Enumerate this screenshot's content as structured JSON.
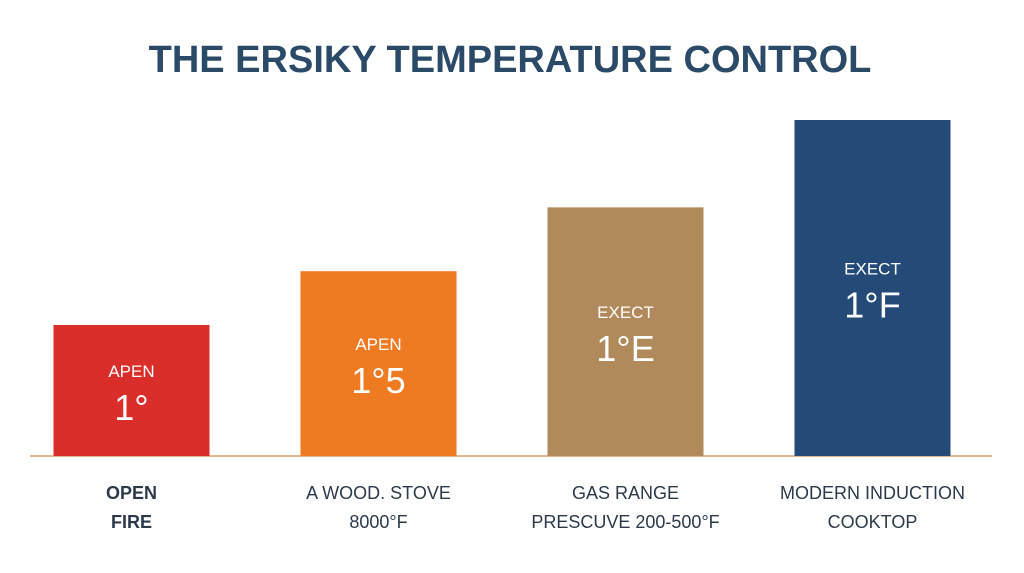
{
  "chart_data": {
    "type": "bar",
    "title": "THE ERSIKY TEMPERATURE CONTROL",
    "categories": [
      [
        "OPEN",
        "FIRE"
      ],
      [
        "A WOOD. STOVE",
        "8000°F"
      ],
      [
        "GAS RANGE",
        "PRESCUVE 200-500°F"
      ],
      [
        "MODERN INDUCTION",
        "COOKTOP"
      ]
    ],
    "values": [
      39,
      55,
      74,
      100
    ],
    "colors": [
      "#d92e2a",
      "#ee7a22",
      "#b08a5a",
      "#244a78"
    ],
    "bar_labels": [
      [
        "APEN",
        "1°"
      ],
      [
        "APEN",
        "1°5"
      ],
      [
        "EXECT",
        "1°E"
      ],
      [
        "EXECT",
        "1°F"
      ]
    ],
    "ylim": [
      0,
      100
    ]
  }
}
